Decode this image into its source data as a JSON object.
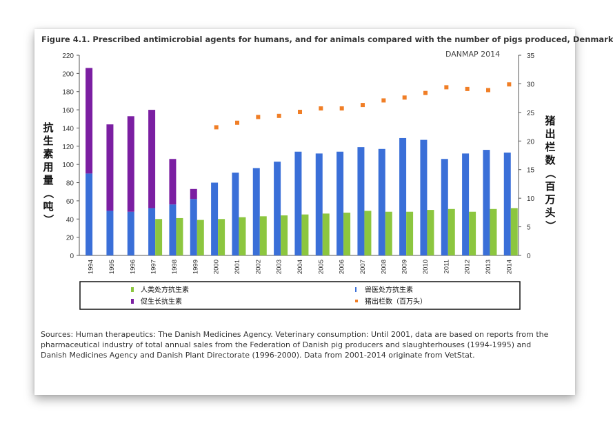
{
  "figure_title": "Figure 4.1. Prescribed antimicrobial agents for humans, and for animals compared with the number of pigs produced, Denmark",
  "watermark": "DANMAP 2014",
  "source_text": "Sources: Human therapeutics: The Danish Medicines Agency. Veterinary consumption: Until 2001, data are based on reports from the pharmaceutical industry of total annual sales from the Federation of Danish pig producers and slaughterhouses (1994-1995) and Danish Medicines Agency and Danish Plant Directorate (1996-2000). Data from 2001-2014 originate from VetStat.",
  "colors": {
    "human": "#8cc63f",
    "vet": "#3a6fd8",
    "growth": "#7b1fa2",
    "pigs": "#f07e26"
  },
  "chart_data": {
    "type": "bar",
    "categories": [
      "1994",
      "1995",
      "1996",
      "1997",
      "1998",
      "1999",
      "2000",
      "2001",
      "2002",
      "2003",
      "2004",
      "2005",
      "2006",
      "2007",
      "2008",
      "2009",
      "2010",
      "2011",
      "2012",
      "2013",
      "2014"
    ],
    "ylabel": "抗生素用量（吨）",
    "y2label": "猪出栏数（百万头）",
    "ylim": [
      0,
      220
    ],
    "y2lim": [
      0,
      35
    ],
    "yticks": [
      "0",
      "20",
      "40",
      "60",
      "80",
      "100",
      "120",
      "140",
      "160",
      "180",
      "200",
      "220"
    ],
    "y2ticks": [
      "0",
      "5",
      "10",
      "15",
      "20",
      "25",
      "30",
      "35"
    ],
    "series": [
      {
        "name": "人类处方抗生素",
        "key": "human",
        "kind": "bar",
        "values": [
          null,
          null,
          null,
          40,
          41,
          39,
          40,
          42,
          43,
          44,
          45,
          46,
          47,
          49,
          48,
          48,
          50,
          51,
          48,
          51,
          52
        ]
      },
      {
        "name": "兽医处方抗生素",
        "key": "vet",
        "kind": "bar",
        "values": [
          90,
          49,
          48,
          52,
          56,
          62,
          80,
          91,
          96,
          103,
          114,
          112,
          114,
          119,
          117,
          129,
          127,
          106,
          112,
          116,
          113
        ]
      },
      {
        "name": "促生长抗生素",
        "key": "growth",
        "kind": "stacked",
        "values": [
          116,
          95,
          105,
          108,
          50,
          11,
          null,
          null,
          null,
          null,
          null,
          null,
          null,
          null,
          null,
          null,
          null,
          null,
          null,
          null,
          null
        ]
      },
      {
        "name": "猪出栏数（百万头）",
        "key": "pigs",
        "kind": "marker",
        "axis": "right",
        "values": [
          null,
          null,
          null,
          null,
          null,
          null,
          22.4,
          23.2,
          24.2,
          24.4,
          25.1,
          25.7,
          25.7,
          26.3,
          27.1,
          27.6,
          28.4,
          29.4,
          29.1,
          28.9,
          29.9
        ]
      }
    ],
    "legend": [
      {
        "label": "人类处方抗生素",
        "key": "human"
      },
      {
        "label": "兽医处方抗生素",
        "key": "vet"
      },
      {
        "label": "促生长抗生素",
        "key": "growth"
      },
      {
        "label": "猪出栏数（百万头）",
        "key": "pigs"
      }
    ]
  }
}
